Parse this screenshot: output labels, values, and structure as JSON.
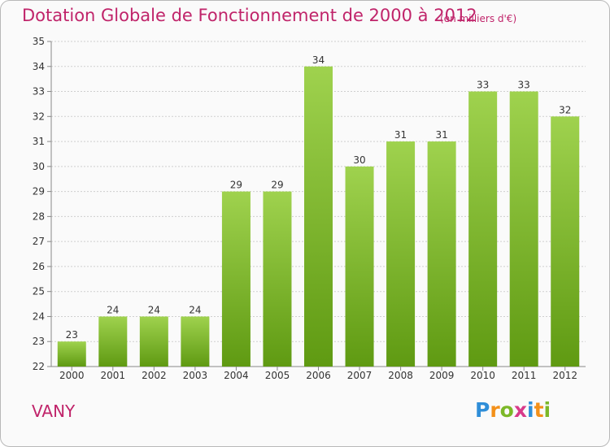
{
  "title": "Dotation Globale de Fonctionnement de 2000 à 2012",
  "subtitle": "(en milliers d'€)",
  "commune": "VANY",
  "logo": {
    "letters": [
      "P",
      "r",
      "o",
      "x",
      "i",
      "t",
      "i"
    ],
    "colors": [
      "#2f8ed8",
      "#f39019",
      "#7cb828",
      "#d83a8a",
      "#2f8ed8",
      "#f39019",
      "#7cb828"
    ]
  },
  "colors": {
    "bar_top": "#9fd24e",
    "bar_bottom": "#5f9a12",
    "title": "#c0246a",
    "grid": "#cfcfcf"
  },
  "chart_data": {
    "type": "bar",
    "categories": [
      "2000",
      "2001",
      "2002",
      "2003",
      "2004",
      "2005",
      "2006",
      "2007",
      "2008",
      "2009",
      "2010",
      "2011",
      "2012"
    ],
    "values": [
      23,
      24,
      24,
      24,
      29,
      29,
      34,
      30,
      31,
      31,
      33,
      33,
      32
    ],
    "title": "Dotation Globale de Fonctionnement de 2000 à 2012",
    "ylim": [
      22,
      35
    ],
    "yticks": [
      22,
      23,
      24,
      25,
      26,
      27,
      28,
      29,
      30,
      31,
      32,
      33,
      34,
      35
    ],
    "grid": true
  }
}
